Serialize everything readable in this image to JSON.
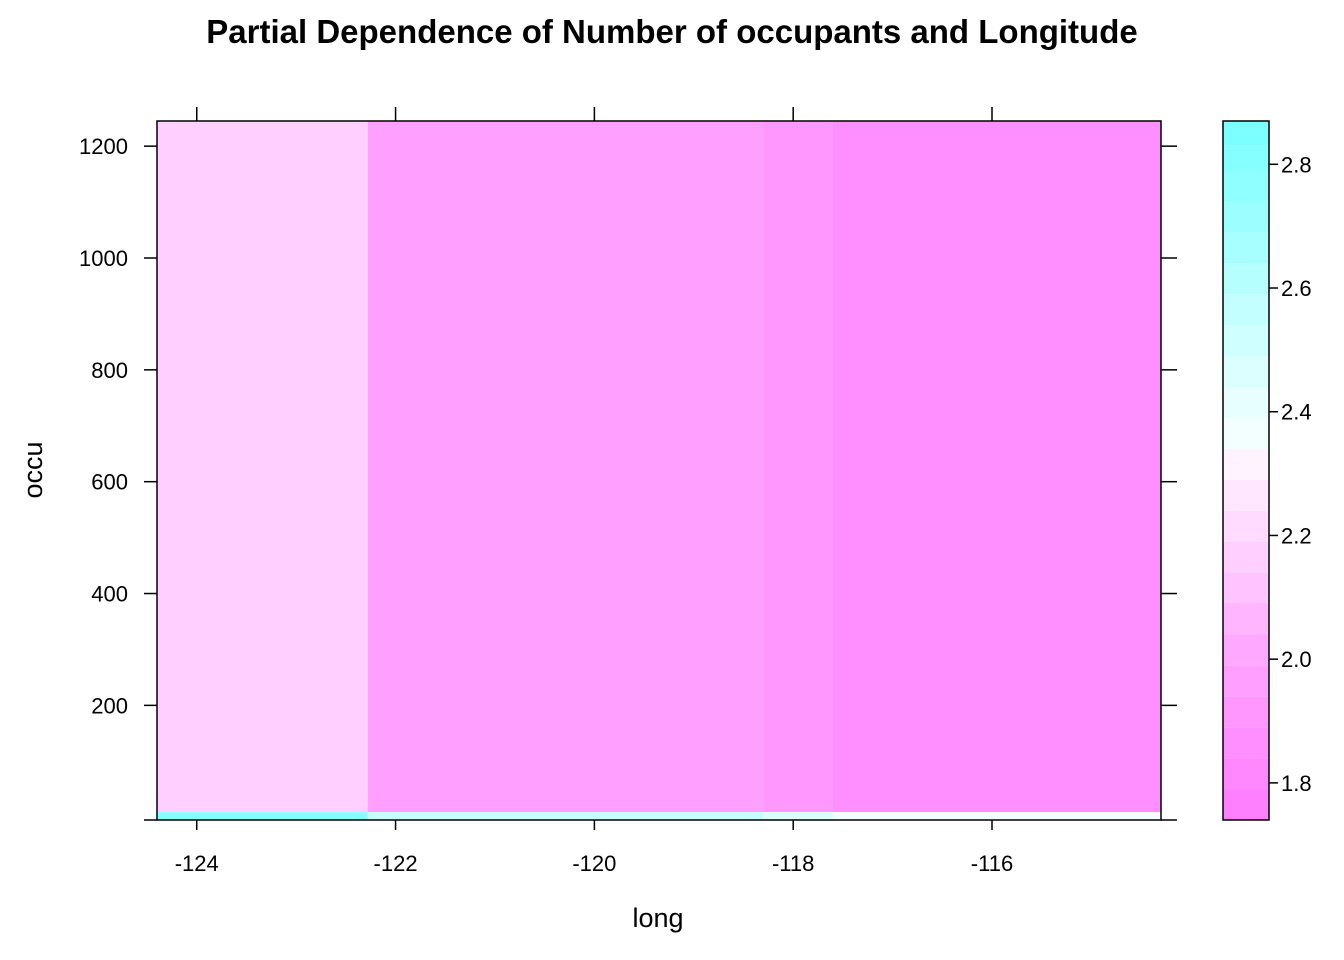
{
  "chart_data": {
    "type": "heatmap",
    "title": "Partial Dependence  of Number of occupants and Longitude",
    "xlabel": "long",
    "ylabel": "occu",
    "xlim": [
      -124.4,
      -114.3
    ],
    "ylim": [
      -5,
      1245
    ],
    "x_ticks": [
      -124,
      -122,
      -120,
      -118,
      -116
    ],
    "x_tick_labels": [
      "-124",
      "-122",
      "-120",
      "-118",
      "-116"
    ],
    "y_ticks": [
      200,
      400,
      600,
      800,
      1000,
      1200
    ],
    "y_tick_labels": [
      "200",
      "400",
      "600",
      "800",
      "1000",
      "1200"
    ],
    "cells": [
      {
        "x0": -124.4,
        "x1": -122.28,
        "y0": 9,
        "y1": 1245,
        "value": 2.14
      },
      {
        "x0": -122.28,
        "x1": -118.3,
        "y0": 9,
        "y1": 1245,
        "value": 1.97
      },
      {
        "x0": -118.3,
        "x1": -117.6,
        "y0": 9,
        "y1": 1245,
        "value": 1.91
      },
      {
        "x0": -117.6,
        "x1": -114.3,
        "y0": 9,
        "y1": 1245,
        "value": 1.85
      },
      {
        "x0": -124.4,
        "x1": -122.28,
        "y0": -5,
        "y1": 9,
        "value": 2.8
      },
      {
        "x0": -122.28,
        "x1": -118.3,
        "y0": -5,
        "y1": 9,
        "value": 2.55
      },
      {
        "x0": -118.3,
        "x1": -117.6,
        "y0": -5,
        "y1": 9,
        "value": 2.45
      },
      {
        "x0": -117.6,
        "x1": -114.3,
        "y0": -5,
        "y1": 9,
        "value": 2.35
      }
    ],
    "colorbar": {
      "range": [
        1.74,
        2.87
      ],
      "ticks": [
        1.8,
        2.0,
        2.2,
        2.4,
        2.6,
        2.8
      ],
      "tick_labels": [
        "1.8",
        "2.0",
        "2.2",
        "2.4",
        "2.6",
        "2.8"
      ],
      "bins": [
        {
          "from": 1.74,
          "to": 1.79,
          "color": "#ff80ff"
        },
        {
          "from": 1.79,
          "to": 1.84,
          "color": "#ff87ff"
        },
        {
          "from": 1.84,
          "to": 1.89,
          "color": "#ff8fff"
        },
        {
          "from": 1.89,
          "to": 1.94,
          "color": "#ff97ff"
        },
        {
          "from": 1.94,
          "to": 1.99,
          "color": "#ff9fff"
        },
        {
          "from": 1.99,
          "to": 2.04,
          "color": "#ffa8ff"
        },
        {
          "from": 2.04,
          "to": 2.09,
          "color": "#ffb6ff"
        },
        {
          "from": 2.09,
          "to": 2.14,
          "color": "#ffc3ff"
        },
        {
          "from": 2.14,
          "to": 2.19,
          "color": "#ffcfff"
        },
        {
          "from": 2.19,
          "to": 2.24,
          "color": "#ffdcff"
        },
        {
          "from": 2.24,
          "to": 2.29,
          "color": "#ffe8ff"
        },
        {
          "from": 2.29,
          "to": 2.34,
          "color": "#fff3ff"
        },
        {
          "from": 2.34,
          "to": 2.39,
          "color": "#f3ffff"
        },
        {
          "from": 2.39,
          "to": 2.44,
          "color": "#e8ffff"
        },
        {
          "from": 2.44,
          "to": 2.49,
          "color": "#dcffff"
        },
        {
          "from": 2.49,
          "to": 2.54,
          "color": "#cfffff"
        },
        {
          "from": 2.54,
          "to": 2.59,
          "color": "#c3ffff"
        },
        {
          "from": 2.59,
          "to": 2.64,
          "color": "#b6ffff"
        },
        {
          "from": 2.64,
          "to": 2.69,
          "color": "#a8ffff"
        },
        {
          "from": 2.69,
          "to": 2.74,
          "color": "#9cffff"
        },
        {
          "from": 2.74,
          "to": 2.79,
          "color": "#8fffff"
        },
        {
          "from": 2.79,
          "to": 2.83,
          "color": "#85ffff"
        },
        {
          "from": 2.83,
          "to": 2.87,
          "color": "#7cffff"
        }
      ]
    }
  }
}
